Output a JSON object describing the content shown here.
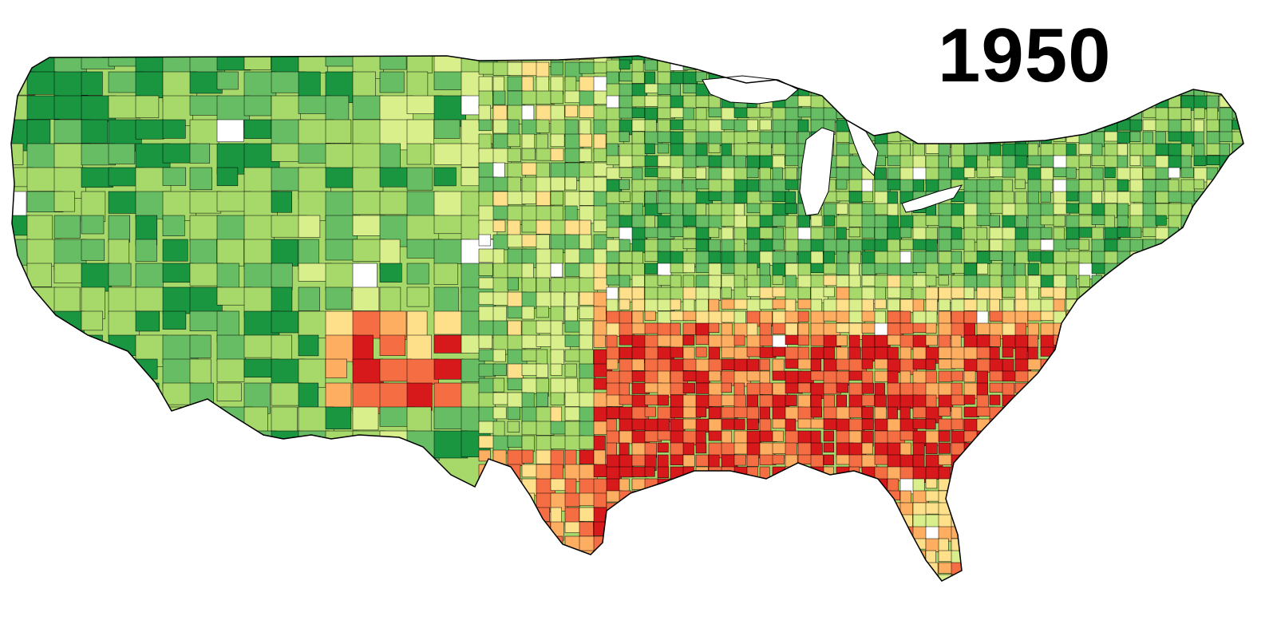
{
  "title": "1950",
  "palette": {
    "dark_green": "#1a9641",
    "green": "#66bd63",
    "light_green": "#a6d96a",
    "pale_green": "#d9ef8b",
    "tan": "#fee08b",
    "peach": "#fdae61",
    "orange": "#f46d43",
    "red": "#d7191c",
    "no_data": "#ffffff",
    "border": "#000000"
  }
}
